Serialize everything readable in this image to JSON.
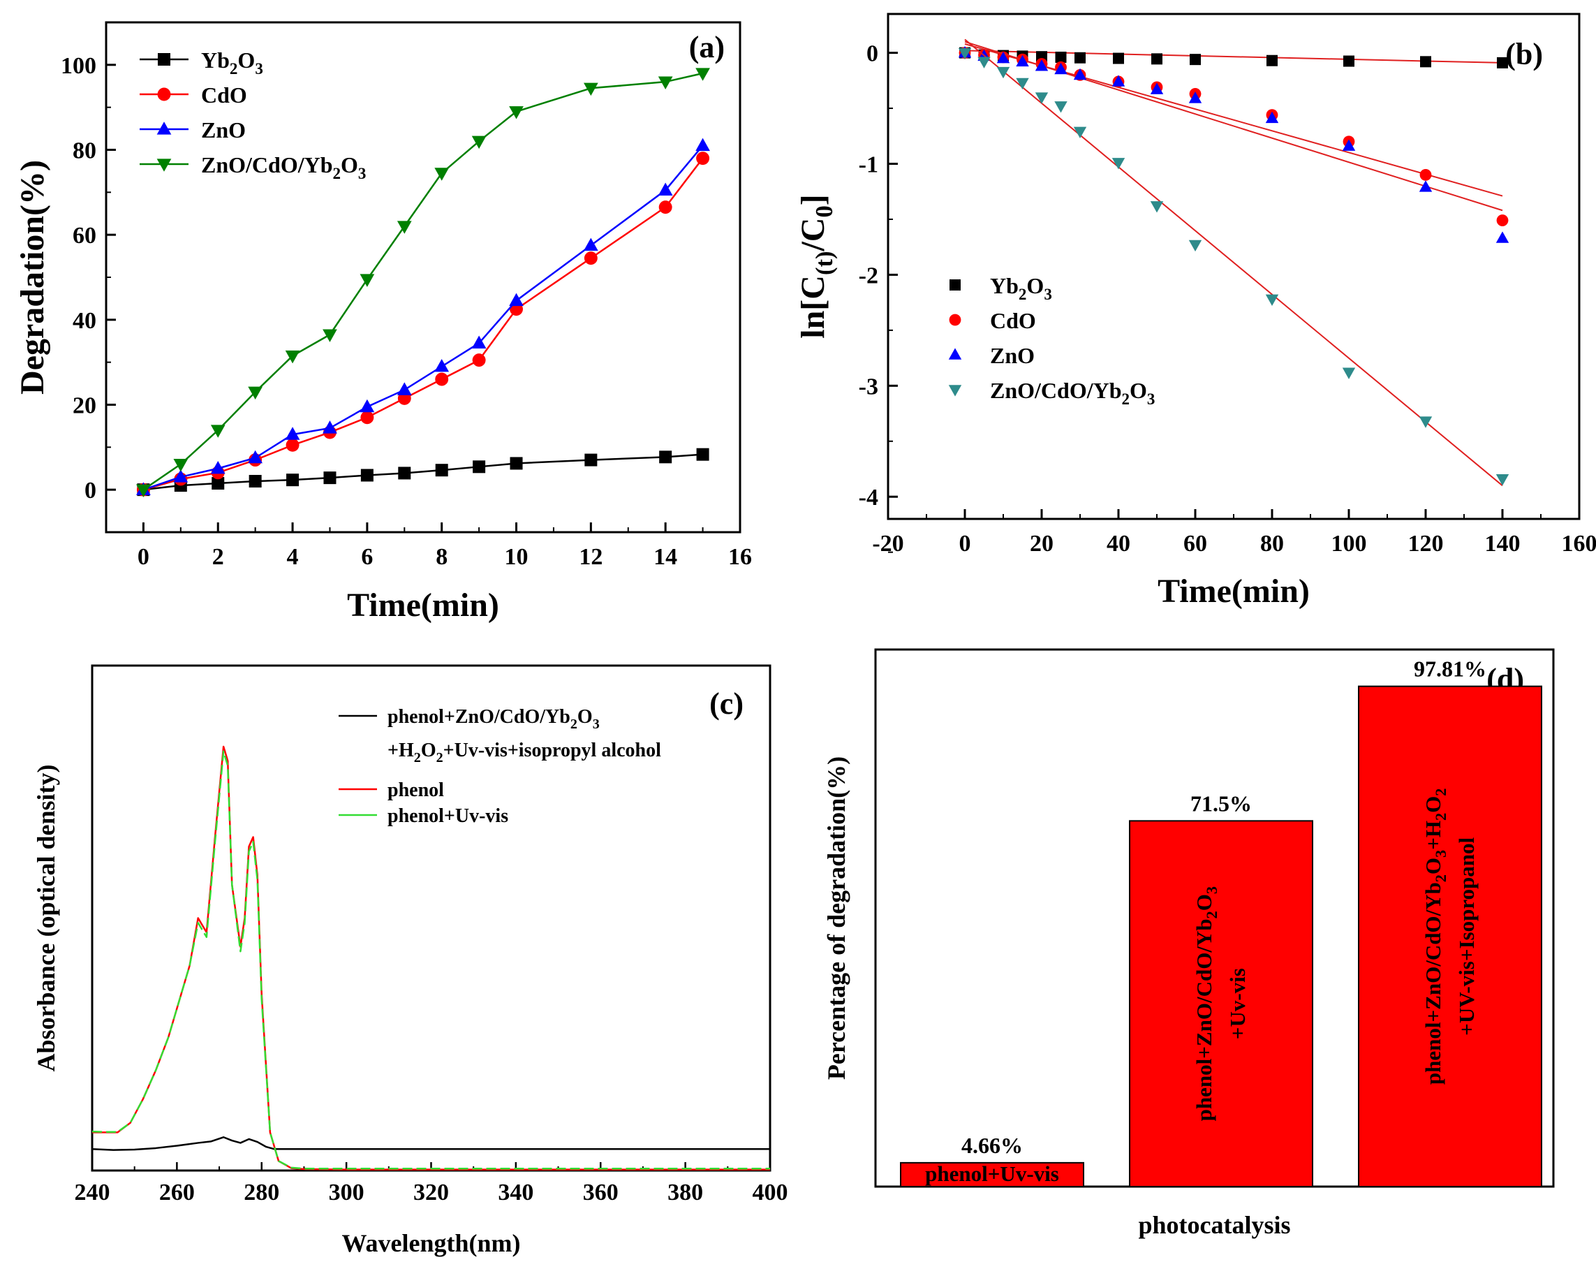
{
  "chart_data": [
    {
      "id": "a",
      "type": "line",
      "panel_label": "(a)",
      "xlabel": "Time(min)",
      "ylabel": "Degradation(%)",
      "xlim": [
        -1,
        16
      ],
      "ylim": [
        -10,
        110
      ],
      "xticks": [
        "0",
        "2",
        "4",
        "6",
        "8",
        "10",
        "12",
        "14",
        "16"
      ],
      "yticks": [
        "0",
        "20",
        "40",
        "60",
        "80",
        "100"
      ],
      "x": [
        0,
        1,
        2,
        3,
        4,
        5,
        6,
        7,
        8,
        9,
        10,
        12,
        14,
        15
      ],
      "series": [
        {
          "name": "Yb2O3",
          "sub": "2",
          "sub2": "3",
          "label_parts": [
            "Yb",
            "2",
            "O",
            "3"
          ],
          "color": "#000000",
          "marker": "square",
          "values": [
            0,
            1,
            1.5,
            2,
            2.3,
            2.8,
            3.4,
            3.9,
            4.6,
            5.4,
            6.2,
            7.0,
            7.7,
            8.3
          ]
        },
        {
          "name": "CdO",
          "label_parts": [
            "CdO"
          ],
          "color": "#ff0000",
          "marker": "circle",
          "values": [
            0,
            2.5,
            4,
            7,
            10.5,
            13.5,
            17,
            21.5,
            26,
            30.5,
            42.5,
            54.5,
            66.5,
            78
          ]
        },
        {
          "name": "ZnO",
          "label_parts": [
            "ZnO"
          ],
          "color": "#0000ff",
          "marker": "triangle-up",
          "values": [
            0,
            3,
            5,
            7.5,
            13,
            14.5,
            19.5,
            23.5,
            29,
            34.5,
            44.5,
            57.5,
            70.5,
            81
          ]
        },
        {
          "name": "ZnO/CdO/Yb2O3",
          "label_parts": [
            "ZnO/CdO/Yb",
            "2",
            "O",
            "3"
          ],
          "color": "#008000",
          "marker": "triangle-down",
          "values": [
            0,
            6,
            14,
            23,
            31.5,
            36.5,
            49.5,
            62,
            74.5,
            82,
            89,
            94.5,
            96,
            98
          ]
        }
      ]
    },
    {
      "id": "b",
      "type": "scatter",
      "panel_label": "(b)",
      "xlabel": "Time(min)",
      "ylabel": "ln[C(t)/C0]",
      "ylabel_parts": [
        "ln[C",
        "(t)",
        "/C",
        "0",
        "]"
      ],
      "xlim": [
        -20,
        160
      ],
      "ylim": [
        -4.2,
        0.35
      ],
      "xticks": [
        "-20",
        "0",
        "20",
        "40",
        "60",
        "80",
        "100",
        "120",
        "140",
        "160"
      ],
      "yticks": [
        "0",
        "-1",
        "-2",
        "-3",
        "-4"
      ],
      "series": [
        {
          "name": "Yb2O3",
          "label_parts": [
            "Yb",
            "2",
            "O",
            "3"
          ],
          "color": "#000000",
          "marker": "square",
          "x": [
            0,
            5,
            10,
            15,
            20,
            25,
            30,
            40,
            50,
            60,
            80,
            100,
            120,
            140
          ],
          "values": [
            0,
            -0.02,
            -0.025,
            -0.03,
            -0.035,
            -0.04,
            -0.045,
            -0.05,
            -0.055,
            -0.06,
            -0.07,
            -0.075,
            -0.08,
            -0.09
          ],
          "fit": [
            [
              0,
              0.02
            ],
            [
              140,
              -0.09
            ]
          ]
        },
        {
          "name": "CdO",
          "label_parts": [
            "CdO"
          ],
          "color": "#ff0000",
          "marker": "circle",
          "x": [
            0,
            5,
            10,
            15,
            20,
            25,
            30,
            40,
            50,
            60,
            80,
            100,
            120,
            140
          ],
          "values": [
            0,
            -0.02,
            -0.04,
            -0.06,
            -0.1,
            -0.13,
            -0.2,
            -0.26,
            -0.31,
            -0.37,
            -0.56,
            -0.8,
            -1.1,
            -1.51
          ],
          "fit": [
            [
              0,
              0.08
            ],
            [
              140,
              -1.29
            ]
          ]
        },
        {
          "name": "ZnO",
          "label_parts": [
            "ZnO"
          ],
          "color": "#0000ff",
          "marker": "triangle-up",
          "x": [
            0,
            5,
            10,
            15,
            20,
            25,
            30,
            40,
            50,
            60,
            80,
            100,
            120,
            140
          ],
          "values": [
            0,
            -0.03,
            -0.05,
            -0.08,
            -0.12,
            -0.15,
            -0.2,
            -0.26,
            -0.33,
            -0.41,
            -0.59,
            -0.84,
            -1.21,
            -1.67
          ],
          "fit": [
            [
              0,
              0.1
            ],
            [
              140,
              -1.42
            ]
          ]
        },
        {
          "name": "ZnO/CdO/Yb2O3",
          "label_parts": [
            "ZnO/CdO/Yb",
            "2",
            "O",
            "3"
          ],
          "color": "#2e8b8b",
          "marker": "triangle-down",
          "x": [
            0,
            5,
            10,
            15,
            20,
            25,
            30,
            40,
            50,
            60,
            80,
            100,
            120,
            140
          ],
          "values": [
            0,
            -0.08,
            -0.17,
            -0.27,
            -0.4,
            -0.48,
            -0.71,
            -0.99,
            -1.38,
            -1.73,
            -2.22,
            -2.88,
            -3.32,
            -3.84
          ],
          "fit": [
            [
              0,
              0.12
            ],
            [
              140,
              -3.9
            ]
          ]
        }
      ]
    },
    {
      "id": "c",
      "type": "line",
      "panel_label": "(c)",
      "xlabel": "Wavelength(nm)",
      "ylabel": "Absorbance (optical density)",
      "xlim": [
        240,
        400
      ],
      "ylim": [
        0,
        1.06
      ],
      "xticks": [
        "240",
        "260",
        "280",
        "300",
        "320",
        "340",
        "360",
        "380",
        "400"
      ],
      "yticks": [],
      "legend": [
        {
          "line1": [
            "phenol+ZnO/CdO/Yb",
            "2",
            "O",
            "3"
          ],
          "line2": [
            "+H",
            "2",
            "O",
            "2",
            "+Uv-vis+isopropyl alcohol"
          ],
          "color": "#000000"
        },
        {
          "line1": [
            "phenol"
          ],
          "color": "#ff0000"
        },
        {
          "line1": [
            "phenol+Uv-vis"
          ],
          "color": "#33dd33"
        }
      ],
      "series": [
        {
          "name": "phenol+ZnO/CdO/Yb2O3+H2O2+Uv-vis+isopropyl alcohol",
          "color": "#000000",
          "x": [
            240,
            245,
            250,
            255,
            260,
            265,
            268,
            271,
            273,
            275,
            277,
            279,
            281,
            283,
            290,
            300,
            400
          ],
          "values": [
            0.045,
            0.043,
            0.044,
            0.047,
            0.052,
            0.058,
            0.061,
            0.07,
            0.063,
            0.058,
            0.066,
            0.06,
            0.05,
            0.045,
            0.045,
            0.045,
            0.045
          ]
        },
        {
          "name": "phenol",
          "color": "#ff0000",
          "x": [
            240,
            243,
            246,
            249,
            252,
            255,
            258,
            261,
            263,
            265,
            267,
            269,
            271,
            272,
            273,
            275,
            276,
            277,
            278,
            279,
            280,
            282,
            284,
            287,
            290,
            300,
            400
          ],
          "values": [
            0.08,
            0.08,
            0.08,
            0.1,
            0.15,
            0.21,
            0.28,
            0.37,
            0.43,
            0.53,
            0.5,
            0.7,
            0.89,
            0.86,
            0.6,
            0.47,
            0.53,
            0.68,
            0.7,
            0.62,
            0.37,
            0.08,
            0.02,
            0.005,
            0.003,
            0.002,
            0.002
          ]
        },
        {
          "name": "phenol+Uv-vis",
          "color": "#33dd33",
          "x": [
            240,
            243,
            246,
            249,
            252,
            255,
            258,
            261,
            263,
            265,
            267,
            269,
            271,
            272,
            273,
            275,
            276,
            277,
            278,
            279,
            280,
            282,
            284,
            287,
            290,
            300,
            400
          ],
          "values": [
            0.082,
            0.081,
            0.081,
            0.1,
            0.15,
            0.21,
            0.28,
            0.37,
            0.43,
            0.52,
            0.49,
            0.69,
            0.88,
            0.85,
            0.6,
            0.46,
            0.52,
            0.67,
            0.69,
            0.61,
            0.36,
            0.08,
            0.02,
            0.006,
            0.004,
            0.004,
            0.004
          ]
        }
      ]
    },
    {
      "id": "d",
      "type": "bar",
      "panel_label": "(d)",
      "xlabel": "photocatalysis",
      "ylabel": "Percentage of degradation(%)",
      "ylim": [
        0,
        105
      ],
      "bar_color": "#ff0000",
      "bars": [
        {
          "value": 4.66,
          "value_label": "4.66%",
          "label_lines": [
            [
              "phenol+Uv-vis"
            ]
          ]
        },
        {
          "value": 71.5,
          "value_label": "71.5%",
          "label_lines": [
            [
              "phenol+ZnO/CdO/Yb",
              "2",
              "O",
              "3"
            ],
            [
              "+Uv-vis"
            ]
          ]
        },
        {
          "value": 97.81,
          "value_label": "97.81%",
          "label_lines": [
            [
              "phenol+ZnO/CdO/Yb",
              "2",
              "O",
              "3",
              "+H",
              "2",
              "O",
              "2"
            ],
            [
              "+UV-vis+Isopropanol"
            ]
          ]
        }
      ]
    }
  ]
}
